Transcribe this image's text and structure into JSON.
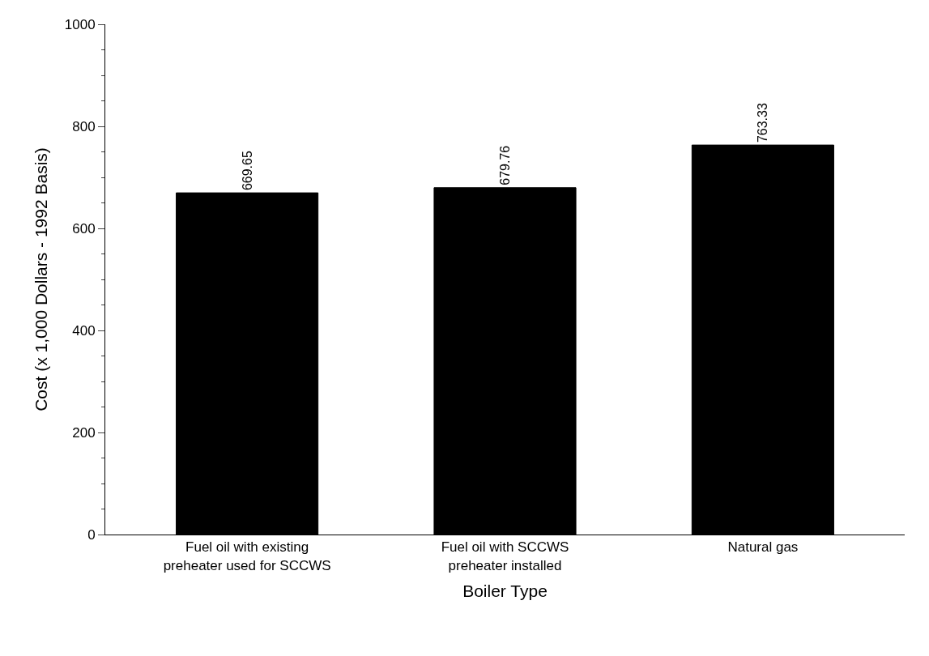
{
  "chart_data": {
    "type": "bar",
    "xlabel": "Boiler Type",
    "ylabel": "Cost (x 1,000 Dollars - 1992 Basis)",
    "categories": [
      "Fuel oil with existing preheater used for SCCWS",
      "Fuel oil with SCCWS preheater installed",
      "Natural gas"
    ],
    "values": [
      669.65,
      679.76,
      763.33
    ],
    "color": "#000000",
    "ylim": [
      0,
      1000
    ],
    "yticks": [
      0,
      200,
      400,
      600,
      800,
      1000
    ],
    "data_labels": true
  }
}
